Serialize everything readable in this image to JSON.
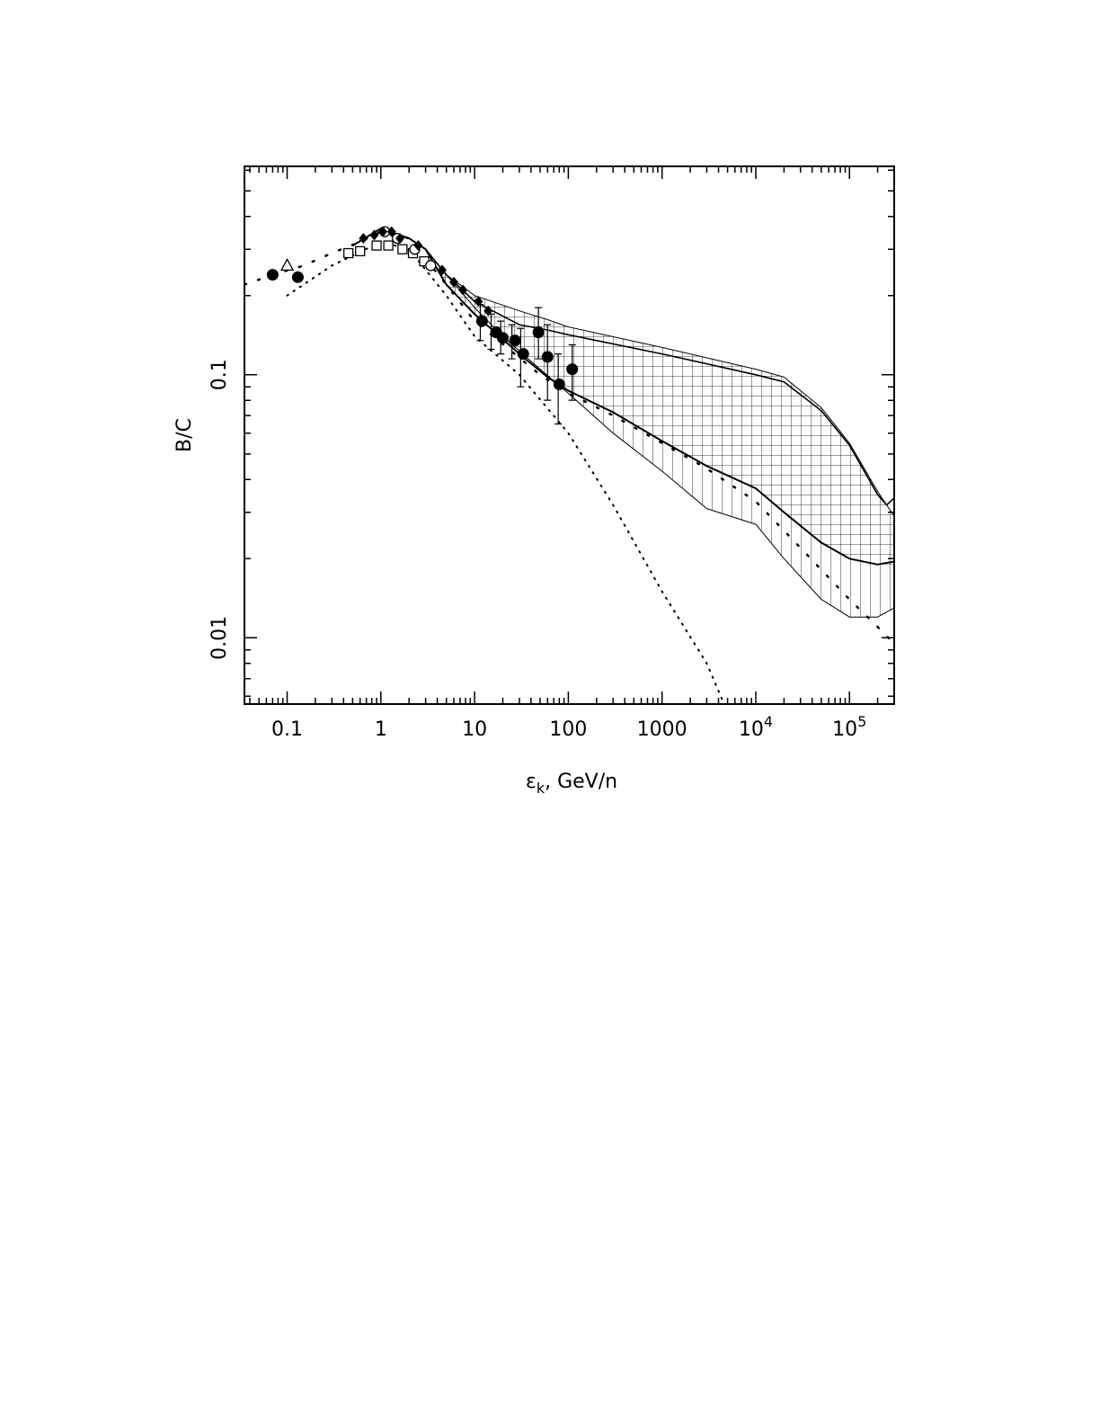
{
  "chart_data": {
    "type": "line",
    "title": "",
    "xlabel_main": "ε",
    "xlabel_sub": "k",
    "xlabel_rest": ", GeV/n",
    "ylabel": "B/C",
    "x_scale": "log",
    "y_scale": "log",
    "xlim": [
      0.035,
      300000
    ],
    "ylim": [
      0.0056,
      0.62
    ],
    "grid": false,
    "legend": "none",
    "x_ticks": [
      {
        "value": 0.1,
        "base": "0.1",
        "exp": ""
      },
      {
        "value": 1,
        "base": "1",
        "exp": ""
      },
      {
        "value": 10,
        "base": "10",
        "exp": ""
      },
      {
        "value": 100,
        "base": "100",
        "exp": ""
      },
      {
        "value": 1000,
        "base": "1000",
        "exp": ""
      },
      {
        "value": 10000,
        "base": "10",
        "exp": "4"
      },
      {
        "value": 100000,
        "base": "10",
        "exp": "5"
      }
    ],
    "y_ticks": [
      {
        "value": 0.01,
        "label": "0.01"
      },
      {
        "value": 0.1,
        "label": "0.1"
      }
    ],
    "bands": [
      {
        "hatch": "grid",
        "upper": [
          [
            3,
            0.3
          ],
          [
            5,
            0.24
          ],
          [
            10,
            0.2
          ],
          [
            30,
            0.175
          ],
          [
            60,
            0.162
          ],
          [
            100,
            0.152
          ],
          [
            1000,
            0.127
          ],
          [
            10000,
            0.105
          ],
          [
            20000,
            0.098
          ],
          [
            50000,
            0.075
          ],
          [
            100000,
            0.055
          ],
          [
            200000,
            0.036
          ],
          [
            300000,
            0.029
          ]
        ],
        "lower": [
          [
            3,
            0.3
          ],
          [
            5,
            0.24
          ],
          [
            10,
            0.19
          ],
          [
            30,
            0.155
          ],
          [
            60,
            0.148
          ],
          [
            100,
            0.142
          ],
          [
            1000,
            0.12
          ],
          [
            10000,
            0.1
          ],
          [
            20000,
            0.094
          ],
          [
            50000,
            0.073
          ],
          [
            100000,
            0.054
          ],
          [
            200000,
            0.035
          ],
          [
            300000,
            0.028
          ]
        ],
        "floor": [
          [
            3,
            0.3
          ],
          [
            5,
            0.22
          ],
          [
            10,
            0.17
          ],
          [
            30,
            0.12
          ],
          [
            60,
            0.098
          ],
          [
            100,
            0.087
          ],
          [
            300,
            0.072
          ],
          [
            1000,
            0.056
          ],
          [
            3000,
            0.045
          ],
          [
            10000,
            0.037
          ],
          [
            20000,
            0.03
          ],
          [
            50000,
            0.023
          ],
          [
            100000,
            0.02
          ],
          [
            200000,
            0.019
          ],
          [
            300000,
            0.019
          ]
        ]
      },
      {
        "hatch": "vertical",
        "upper": [
          [
            3,
            0.3
          ],
          [
            5,
            0.22
          ],
          [
            10,
            0.17
          ],
          [
            30,
            0.12
          ],
          [
            60,
            0.098
          ],
          [
            100,
            0.087
          ],
          [
            300,
            0.072
          ],
          [
            1000,
            0.056
          ],
          [
            3000,
            0.045
          ],
          [
            10000,
            0.037
          ],
          [
            20000,
            0.03
          ],
          [
            50000,
            0.023
          ],
          [
            100000,
            0.02
          ],
          [
            200000,
            0.019
          ],
          [
            300000,
            0.019
          ]
        ],
        "lower": [
          [
            3,
            0.3
          ],
          [
            5,
            0.24
          ],
          [
            10,
            0.18
          ],
          [
            20,
            0.14
          ],
          [
            50,
            0.105
          ],
          [
            100,
            0.085
          ],
          [
            300,
            0.06
          ],
          [
            1000,
            0.043
          ],
          [
            3000,
            0.031
          ],
          [
            10000,
            0.027
          ],
          [
            20000,
            0.02
          ],
          [
            50000,
            0.014
          ],
          [
            100000,
            0.012
          ],
          [
            200000,
            0.012
          ],
          [
            300000,
            0.013
          ]
        ]
      }
    ],
    "series": [
      {
        "style": "solid",
        "width": 1,
        "points": [
          [
            3,
            0.3
          ],
          [
            5,
            0.24
          ],
          [
            10,
            0.2
          ],
          [
            30,
            0.175
          ],
          [
            60,
            0.162
          ],
          [
            100,
            0.152
          ],
          [
            1000,
            0.127
          ],
          [
            10000,
            0.105
          ],
          [
            20000,
            0.098
          ],
          [
            50000,
            0.075
          ],
          [
            100000,
            0.055
          ],
          [
            200000,
            0.036
          ],
          [
            300000,
            0.029
          ]
        ]
      },
      {
        "style": "solid",
        "width": 1.6,
        "points": [
          [
            3,
            0.3
          ],
          [
            5,
            0.24
          ],
          [
            10,
            0.19
          ],
          [
            30,
            0.155
          ],
          [
            60,
            0.148
          ],
          [
            100,
            0.142
          ],
          [
            1000,
            0.12
          ],
          [
            10000,
            0.1
          ],
          [
            20000,
            0.094
          ],
          [
            50000,
            0.073
          ],
          [
            100000,
            0.054
          ],
          [
            200000,
            0.035
          ],
          [
            250000,
            0.032
          ],
          [
            300000,
            0.034
          ]
        ]
      },
      {
        "style": "solid",
        "width": 2,
        "points": [
          [
            0.5,
            0.31
          ],
          [
            1,
            0.36
          ],
          [
            2,
            0.33
          ],
          [
            3,
            0.3
          ],
          [
            5,
            0.22
          ],
          [
            10,
            0.17
          ],
          [
            30,
            0.12
          ],
          [
            60,
            0.098
          ],
          [
            100,
            0.087
          ],
          [
            300,
            0.072
          ],
          [
            1000,
            0.056
          ],
          [
            3000,
            0.045
          ],
          [
            10000,
            0.037
          ],
          [
            20000,
            0.03
          ],
          [
            50000,
            0.023
          ],
          [
            100000,
            0.02
          ],
          [
            200000,
            0.019
          ],
          [
            300000,
            0.0195
          ]
        ]
      },
      {
        "style": "solid",
        "width": 1,
        "points": [
          [
            3,
            0.3
          ],
          [
            5,
            0.24
          ],
          [
            10,
            0.18
          ],
          [
            20,
            0.14
          ],
          [
            50,
            0.105
          ],
          [
            100,
            0.085
          ],
          [
            300,
            0.06
          ],
          [
            1000,
            0.043
          ],
          [
            3000,
            0.031
          ],
          [
            10000,
            0.027
          ],
          [
            20000,
            0.02
          ],
          [
            50000,
            0.014
          ],
          [
            100000,
            0.012
          ],
          [
            200000,
            0.012
          ],
          [
            300000,
            0.013
          ]
        ]
      },
      {
        "style": "dash",
        "width": 2.5,
        "points": [
          [
            0.035,
            0.22
          ],
          [
            0.07,
            0.24
          ],
          [
            0.15,
            0.26
          ],
          [
            0.3,
            0.29
          ],
          [
            0.6,
            0.32
          ],
          [
            1,
            0.35
          ],
          [
            2,
            0.33
          ],
          [
            5,
            0.22
          ],
          [
            10,
            0.16
          ],
          [
            50,
            0.1
          ],
          [
            100,
            0.085
          ],
          [
            300,
            0.07
          ],
          [
            1000,
            0.055
          ],
          [
            3000,
            0.044
          ],
          [
            10000,
            0.033
          ],
          [
            30000,
            0.022
          ],
          [
            100000,
            0.014
          ],
          [
            200000,
            0.011
          ],
          [
            300000,
            0.0095
          ]
        ]
      },
      {
        "style": "dot",
        "width": 2,
        "points": [
          [
            0.1,
            0.2
          ],
          [
            0.3,
            0.26
          ],
          [
            1,
            0.32
          ],
          [
            2,
            0.3
          ],
          [
            5,
            0.2
          ],
          [
            10,
            0.14
          ],
          [
            30,
            0.1
          ],
          [
            100,
            0.06
          ],
          [
            300,
            0.032
          ],
          [
            1000,
            0.015
          ],
          [
            3000,
            0.008
          ],
          [
            4500,
            0.0057
          ]
        ]
      }
    ],
    "markers": [
      {
        "shape": "circle-filled",
        "points": [
          [
            0.07,
            0.24
          ],
          [
            0.13,
            0.235
          ],
          [
            12,
            0.16
          ],
          [
            17,
            0.145
          ],
          [
            20,
            0.138
          ],
          [
            27,
            0.135
          ],
          [
            33,
            0.12
          ],
          [
            48,
            0.145
          ],
          [
            60,
            0.117
          ],
          [
            80,
            0.092
          ],
          [
            110,
            0.105
          ]
        ]
      },
      {
        "shape": "triangle-open",
        "points": [
          [
            0.1,
            0.26
          ]
        ]
      },
      {
        "shape": "square-open",
        "points": [
          [
            0.45,
            0.29
          ],
          [
            0.6,
            0.295
          ],
          [
            0.9,
            0.31
          ],
          [
            1.2,
            0.31
          ],
          [
            1.7,
            0.3
          ],
          [
            2.2,
            0.29
          ],
          [
            2.9,
            0.27
          ]
        ]
      },
      {
        "shape": "circle-open",
        "points": [
          [
            1.1,
            0.35
          ],
          [
            1.5,
            0.33
          ],
          [
            2.3,
            0.3
          ],
          [
            3.4,
            0.26
          ]
        ]
      },
      {
        "shape": "diamond-filled",
        "points": [
          [
            0.65,
            0.33
          ],
          [
            0.85,
            0.34
          ],
          [
            1.05,
            0.35
          ],
          [
            1.3,
            0.35
          ],
          [
            1.6,
            0.33
          ],
          [
            2.5,
            0.31
          ],
          [
            4.5,
            0.25
          ],
          [
            6,
            0.225
          ],
          [
            7.5,
            0.21
          ],
          [
            11,
            0.19
          ],
          [
            14,
            0.175
          ]
        ]
      }
    ],
    "error_bars": [
      [
        11.5,
        0.135,
        0.185
      ],
      [
        15,
        0.125,
        0.17
      ],
      [
        19,
        0.12,
        0.16
      ],
      [
        25,
        0.115,
        0.155
      ],
      [
        31,
        0.09,
        0.15
      ],
      [
        48,
        0.115,
        0.18
      ],
      [
        60,
        0.08,
        0.155
      ],
      [
        78,
        0.065,
        0.12
      ],
      [
        110,
        0.08,
        0.13
      ]
    ]
  }
}
